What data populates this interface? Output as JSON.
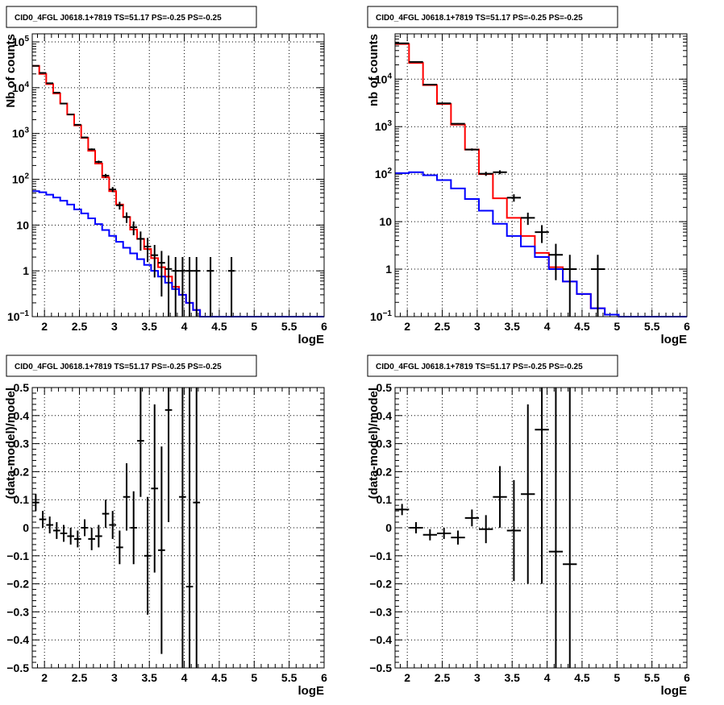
{
  "colors": {
    "data": "#000000",
    "total_model": "#ff0000",
    "source_model": "#0000ff",
    "grid": "#000000",
    "background": "#ffffff"
  },
  "chart_data": [
    {
      "type": "line",
      "panel": "top-left",
      "title": "CID0_4FGL J0618.1+7819 TS=51.17 PS=-0.25 PS=-0.25",
      "xlabel": "logE",
      "ylabel": "Nb of counts",
      "xlim": [
        1.825,
        6.0
      ],
      "ylim": [
        0.1,
        150000
      ],
      "yscale": "log",
      "grid": true,
      "xticks": [
        "2",
        "2.5",
        "3",
        "3.5",
        "4",
        "4.5",
        "5",
        "5.5",
        "6"
      ],
      "yticks": [
        "10^-1",
        "1",
        "10",
        "10^2",
        "10^3",
        "10^4",
        "10^5"
      ],
      "bin_edges": [
        1.825,
        1.925,
        2.025,
        2.125,
        2.225,
        2.325,
        2.425,
        2.525,
        2.625,
        2.725,
        2.825,
        2.925,
        3.025,
        3.125,
        3.225,
        3.325,
        3.425,
        3.525,
        3.625,
        3.725,
        3.825,
        3.925,
        4.025,
        4.125,
        4.225,
        4.325,
        4.425,
        4.525,
        4.625,
        4.725,
        4.825,
        4.925,
        5.025,
        5.125,
        5.225,
        5.325,
        5.425,
        5.525,
        5.625,
        5.725,
        5.825,
        5.925,
        6.0
      ],
      "series": [
        {
          "role": "total_model",
          "values": [
            30000,
            20000,
            12000,
            7500,
            4500,
            2600,
            1500,
            800,
            420,
            220,
            110,
            55,
            28,
            15,
            8,
            5,
            3,
            1.9,
            1.2,
            0.75,
            0.45,
            0.3,
            0.2,
            0.14,
            0.1,
            0.1,
            0.1,
            0.1,
            0.1,
            0.1,
            0.1,
            0.1,
            0.1,
            0.1,
            0.1,
            0.1,
            0.1,
            0.1,
            0.1,
            0.1,
            0.1,
            0.1
          ]
        },
        {
          "role": "source_model",
          "values": [
            55,
            52,
            46,
            40,
            34,
            28,
            22,
            18,
            14,
            10.5,
            7.8,
            5.8,
            4.3,
            3.2,
            2.4,
            1.8,
            1.35,
            1.0,
            0.75,
            0.55,
            0.4,
            0.3,
            0.2,
            0.14,
            0.1,
            0.1,
            0.1,
            0.1,
            0.1,
            0.1,
            0.1,
            0.1,
            0.1,
            0.1,
            0.1,
            0.1,
            0.1,
            0.1,
            0.1,
            0.1,
            0.1,
            0.1
          ]
        },
        {
          "role": "data",
          "x": [
            1.875,
            1.975,
            2.075,
            2.175,
            2.275,
            2.375,
            2.475,
            2.575,
            2.675,
            2.775,
            2.875,
            2.975,
            3.075,
            3.175,
            3.275,
            3.375,
            3.475,
            3.575,
            3.675,
            3.775,
            3.875,
            3.975,
            4.075,
            4.175,
            4.375,
            4.675
          ],
          "y": [
            30000,
            21000,
            12500,
            7800,
            4500,
            2600,
            1550,
            820,
            450,
            240,
            120,
            60,
            27,
            15,
            9,
            5,
            3.4,
            2.2,
            1.5,
            1.1,
            1,
            1,
            1,
            1,
            1,
            1
          ]
        }
      ]
    },
    {
      "type": "line",
      "panel": "top-right",
      "title": "CID0_4FGL J0618.1+7819 TS=51.17 PS=-0.25 PS=-0.25",
      "xlabel": "logE",
      "ylabel": "nb of counts",
      "xlim": [
        1.825,
        6.0
      ],
      "ylim": [
        0.1,
        90000
      ],
      "yscale": "log",
      "grid": true,
      "xticks": [
        "2",
        "2.5",
        "3",
        "3.5",
        "4",
        "4.5",
        "5",
        "5.5",
        "6"
      ],
      "yticks": [
        "10^-1",
        "1",
        "10",
        "10^2",
        "10^3",
        "10^4"
      ],
      "bin_edges": [
        1.825,
        2.025,
        2.225,
        2.425,
        2.625,
        2.825,
        3.025,
        3.225,
        3.425,
        3.625,
        3.825,
        4.025,
        4.225,
        4.425,
        4.625,
        4.825,
        5.025,
        5.225,
        5.425,
        5.625,
        5.825,
        6.0
      ],
      "series": [
        {
          "role": "total_model",
          "values": [
            55000,
            22000,
            7500,
            3000,
            1100,
            330,
            100,
            31,
            12,
            5,
            2.2,
            1.1,
            0.55,
            0.3,
            0.15,
            0.11,
            0.1,
            0.1,
            0.1,
            0.1,
            0.1
          ]
        },
        {
          "role": "source_model",
          "values": [
            105,
            110,
            95,
            75,
            50,
            30,
            17,
            9,
            5,
            3,
            1.8,
            1.0,
            0.55,
            0.3,
            0.15,
            0.11,
            0.1,
            0.1,
            0.1,
            0.1,
            0.1
          ]
        },
        {
          "role": "data",
          "x": [
            1.925,
            2.125,
            2.325,
            2.525,
            2.725,
            2.925,
            3.125,
            3.325,
            3.525,
            3.725,
            3.925,
            4.125,
            4.325,
            4.725
          ],
          "y": [
            57000,
            23000,
            7700,
            3100,
            1150,
            330,
            102,
            110,
            32,
            12,
            6,
            2,
            1,
            1
          ]
        }
      ]
    },
    {
      "type": "scatter",
      "panel": "bottom-left",
      "title": "CID0_4FGL J0618.1+7819 TS=51.17 PS=-0.25 PS=-0.25",
      "xlabel": "logE",
      "ylabel": "(data-model)/model",
      "xlim": [
        1.825,
        6.0
      ],
      "ylim": [
        -0.5,
        0.5
      ],
      "grid": true,
      "xticks": [
        "2",
        "2.5",
        "3",
        "3.5",
        "4",
        "4.5",
        "5",
        "5.5",
        "6"
      ],
      "yticks": [
        "-0.5",
        "-0.4",
        "-0.3",
        "-0.2",
        "-0.1",
        "0",
        "0.1",
        "0.2",
        "0.3",
        "0.4",
        "0.5"
      ],
      "xerr": 0.05,
      "points": [
        {
          "x": 1.875,
          "y": 0.09,
          "err": 0.03
        },
        {
          "x": 1.975,
          "y": 0.03,
          "err": 0.03
        },
        {
          "x": 2.075,
          "y": 0.01,
          "err": 0.03
        },
        {
          "x": 2.175,
          "y": -0.01,
          "err": 0.03
        },
        {
          "x": 2.275,
          "y": -0.02,
          "err": 0.03
        },
        {
          "x": 2.375,
          "y": -0.03,
          "err": 0.03
        },
        {
          "x": 2.475,
          "y": -0.04,
          "err": 0.03
        },
        {
          "x": 2.575,
          "y": 0.0,
          "err": 0.03
        },
        {
          "x": 2.675,
          "y": -0.04,
          "err": 0.04
        },
        {
          "x": 2.775,
          "y": -0.03,
          "err": 0.04
        },
        {
          "x": 2.875,
          "y": 0.05,
          "err": 0.05
        },
        {
          "x": 2.975,
          "y": 0.01,
          "err": 0.05
        },
        {
          "x": 3.075,
          "y": -0.07,
          "err": 0.06
        },
        {
          "x": 3.175,
          "y": 0.11,
          "err": 0.12
        },
        {
          "x": 3.275,
          "y": 0.0,
          "err": 0.13
        },
        {
          "x": 3.375,
          "y": 0.31,
          "err": 0.2
        },
        {
          "x": 3.475,
          "y": -0.1,
          "err": 0.21
        },
        {
          "x": 3.575,
          "y": 0.14,
          "err": 0.3
        },
        {
          "x": 3.675,
          "y": -0.08,
          "err": 0.37
        },
        {
          "x": 3.775,
          "y": 0.42,
          "err": 0.4
        },
        {
          "x": 3.975,
          "y": 0.11,
          "err": 0.8
        },
        {
          "x": 4.075,
          "y": -0.21,
          "err": 0.9
        },
        {
          "x": 4.175,
          "y": 0.09,
          "err": 1.0
        }
      ]
    },
    {
      "type": "scatter",
      "panel": "bottom-right",
      "title": "CID0_4FGL J0618.1+7819 TS=51.17 PS=-0.25 PS=-0.25",
      "xlabel": "logE",
      "ylabel": "(data-model)/model",
      "xlim": [
        1.825,
        6.0
      ],
      "ylim": [
        -0.5,
        0.5
      ],
      "grid": true,
      "xticks": [
        "2",
        "2.5",
        "3",
        "3.5",
        "4",
        "4.5",
        "5",
        "5.5",
        "6"
      ],
      "yticks": [
        "-0.5",
        "-0.4",
        "-0.3",
        "-0.2",
        "-0.1",
        "0",
        "0.1",
        "0.2",
        "0.3",
        "0.4",
        "0.5"
      ],
      "xerr": 0.1,
      "points": [
        {
          "x": 1.925,
          "y": 0.065,
          "err": 0.02
        },
        {
          "x": 2.125,
          "y": 0.0,
          "err": 0.02
        },
        {
          "x": 2.325,
          "y": -0.025,
          "err": 0.02
        },
        {
          "x": 2.525,
          "y": -0.02,
          "err": 0.02
        },
        {
          "x": 2.725,
          "y": -0.035,
          "err": 0.025
        },
        {
          "x": 2.925,
          "y": 0.035,
          "err": 0.03
        },
        {
          "x": 3.125,
          "y": -0.005,
          "err": 0.05
        },
        {
          "x": 3.325,
          "y": 0.11,
          "err": 0.11
        },
        {
          "x": 3.525,
          "y": -0.01,
          "err": 0.18
        },
        {
          "x": 3.725,
          "y": 0.12,
          "err": 0.32
        },
        {
          "x": 3.925,
          "y": 0.35,
          "err": 0.55
        },
        {
          "x": 4.125,
          "y": -0.085,
          "err": 1.0
        },
        {
          "x": 4.325,
          "y": -0.13,
          "err": 1.0
        }
      ]
    }
  ]
}
